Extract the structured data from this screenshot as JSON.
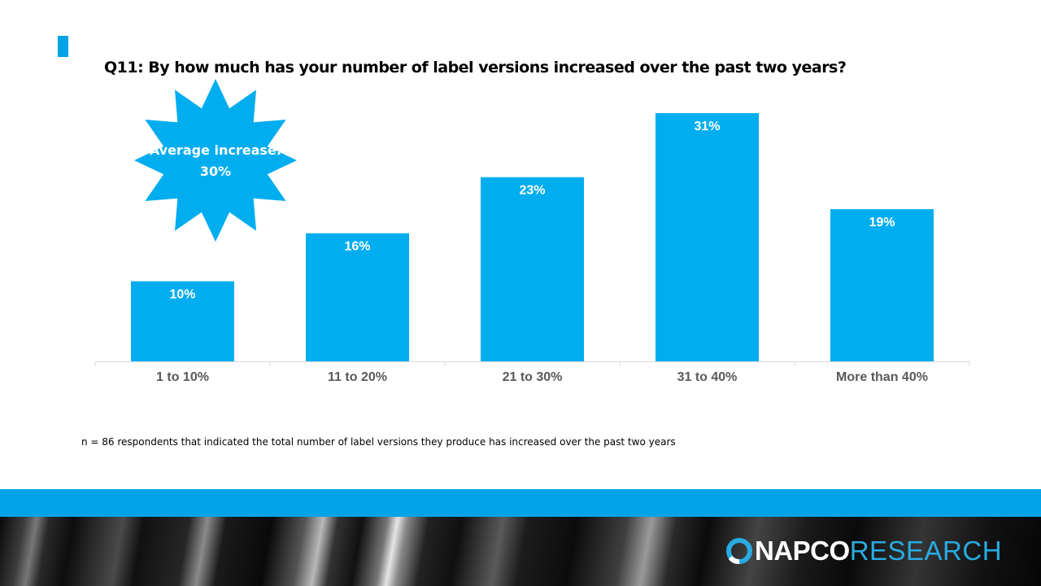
{
  "title": "Q11: By how much has your number of label versions increased over the past two years?",
  "callout": {
    "line1": "Average increase:",
    "line2": "30%"
  },
  "footnote": "n = 86 respondents that indicated the total number of label versions they produce  has increased over the past two years",
  "logo": {
    "part1": "NAPCO",
    "part2": "RESEARCH"
  },
  "colors": {
    "accent": "#00a3e6",
    "bar": "#00adef",
    "footer_band": "#00a3e6",
    "logo_blue": "#29abe2"
  },
  "chart_data": {
    "type": "bar",
    "categories": [
      "1 to 10%",
      "11 to 20%",
      "21 to 30%",
      "31 to 40%",
      "More than 40%"
    ],
    "values": [
      10,
      16,
      23,
      31,
      19
    ],
    "value_labels": [
      "10%",
      "16%",
      "23%",
      "31%",
      "19%"
    ],
    "ylim": [
      0,
      100
    ],
    "grid": false,
    "legend": "none"
  }
}
